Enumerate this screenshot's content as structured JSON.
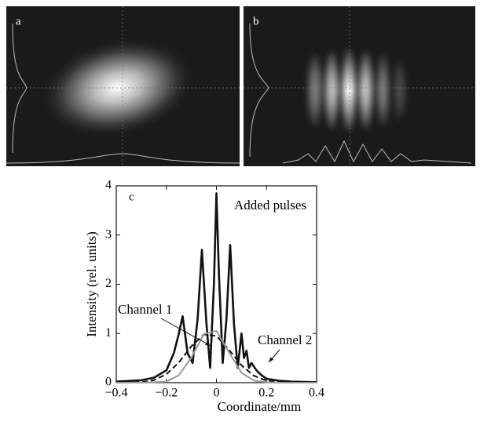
{
  "panels": [
    {
      "label": "a"
    },
    {
      "label": "b"
    }
  ],
  "chart_data": {
    "type": "line",
    "panel_label": "c",
    "xlabel": "Coordinate/mm",
    "ylabel": "Intensity (rel. units)",
    "xlim": [
      -0.4,
      0.4
    ],
    "xticks": [
      {
        "value": -0.4,
        "label": "−0.4"
      },
      {
        "value": -0.2,
        "label": "−0.2"
      },
      0,
      0.2,
      0.4
    ],
    "ylim": [
      0,
      4
    ],
    "yticks": [
      0,
      1,
      2,
      3,
      4
    ],
    "series": [
      {
        "name": "Added pulses",
        "color": "#111111",
        "x": [
          -0.4,
          -0.3,
          -0.25,
          -0.2,
          -0.17,
          -0.15,
          -0.135,
          -0.115,
          -0.095,
          -0.075,
          -0.058,
          -0.04,
          -0.025,
          -0.01,
          0,
          0.01,
          0.025,
          0.04,
          0.055,
          0.07,
          0.085,
          0.1,
          0.11,
          0.12,
          0.13,
          0.14,
          0.16,
          0.18,
          0.2,
          0.25,
          0.3,
          0.4
        ],
        "values": [
          0.02,
          0.05,
          0.1,
          0.25,
          0.6,
          1.0,
          1.35,
          0.6,
          0.4,
          1.3,
          2.7,
          1.2,
          0.3,
          2.0,
          3.85,
          2.2,
          0.4,
          1.3,
          2.8,
          1.2,
          0.3,
          1.0,
          0.5,
          0.65,
          0.3,
          0.4,
          0.25,
          0.15,
          0.08,
          0.04,
          0.02,
          0.01
        ]
      },
      {
        "name": "Channel 1",
        "color": "#111111",
        "dashed": true,
        "x": [
          -0.4,
          -0.35,
          -0.3,
          -0.25,
          -0.2,
          -0.15,
          -0.1,
          -0.05,
          0,
          0.05,
          0.1,
          0.15,
          0.2,
          0.25,
          0.3,
          0.35,
          0.4
        ],
        "values": [
          0,
          0,
          0.01,
          0.05,
          0.17,
          0.41,
          0.74,
          0.98,
          0.95,
          0.67,
          0.35,
          0.14,
          0.04,
          0.01,
          0,
          0,
          0
        ]
      },
      {
        "name": "Channel 2",
        "color": "#999999",
        "x": [
          -0.4,
          -0.35,
          -0.3,
          -0.25,
          -0.2,
          -0.15,
          -0.1,
          -0.05,
          0,
          0.05,
          0.1,
          0.15,
          0.2,
          0.25,
          0.3,
          0.35,
          0.4
        ],
        "values": [
          0,
          0,
          0,
          0.01,
          0.02,
          0.15,
          0.51,
          0.99,
          1.05,
          0.62,
          0.2,
          0.04,
          0.01,
          0,
          0,
          0,
          0
        ]
      }
    ]
  }
}
